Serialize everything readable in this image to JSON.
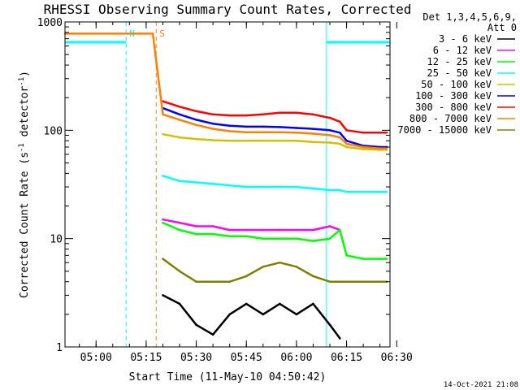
{
  "chart_data": {
    "type": "line",
    "title": "RHESSI Observing Summary Count Rates, Corrected",
    "xlabel": "Start Time (11-May-10 04:50:42)",
    "ylabel": "Corrected Count Rate (s",
    "ylabel_sup1": "-1",
    "ylabel_mid": " detector",
    "ylabel_sup2": "-1",
    "ylabel_end": ")",
    "yscale": "log",
    "xlim": [
      "04:50:42",
      "06:28:00"
    ],
    "ylim": [
      1,
      1000
    ],
    "x_ticks": [
      "05:00",
      "05:15",
      "05:30",
      "05:45",
      "06:00",
      "06:15",
      "06:30"
    ],
    "y_ticks": [
      "1",
      "10",
      "100",
      "1000"
    ],
    "legend_header": [
      "Det 1,3,4,5,6,9,",
      "Att 0"
    ],
    "legend_placement": "right",
    "series": [
      {
        "name": "3 - 6 keV",
        "color": "#000000",
        "x": [
          "05:20",
          "05:25",
          "05:30",
          "05:35",
          "05:40",
          "05:45",
          "05:50",
          "05:55",
          "06:00",
          "06:05",
          "06:10",
          "06:13"
        ],
        "y": [
          3.0,
          2.5,
          1.6,
          1.3,
          2.0,
          2.5,
          2.0,
          2.5,
          2.0,
          2.5,
          1.6,
          1.2
        ]
      },
      {
        "name": "6 - 12 keV",
        "color": "#ff00ff",
        "x": [
          "05:20",
          "05:25",
          "05:30",
          "05:35",
          "05:40",
          "05:45",
          "05:50",
          "05:55",
          "06:00",
          "06:05",
          "06:10",
          "06:13"
        ],
        "y": [
          15,
          14,
          13,
          13,
          12,
          12,
          12,
          12,
          12,
          12,
          13,
          12
        ]
      },
      {
        "name": "12 - 25 keV",
        "color": "#00ff00",
        "x": [
          "05:20",
          "05:25",
          "05:30",
          "05:35",
          "05:40",
          "05:45",
          "05:50",
          "05:55",
          "06:00",
          "06:05",
          "06:10",
          "06:13",
          "06:15",
          "06:20",
          "06:25",
          "06:27"
        ],
        "y": [
          14,
          12,
          11,
          11,
          10.5,
          10.5,
          10,
          10,
          10,
          9.5,
          10,
          12,
          7,
          6.5,
          6.5,
          6.5
        ]
      },
      {
        "name": "25 - 50 keV",
        "color": "#00ffff",
        "x": [
          "05:20",
          "05:25",
          "05:30",
          "05:35",
          "05:40",
          "05:45",
          "05:50",
          "05:55",
          "06:00",
          "06:05",
          "06:10",
          "06:13",
          "06:15",
          "06:20",
          "06:25",
          "06:27"
        ],
        "y": [
          38,
          34,
          33,
          32,
          31,
          30,
          30,
          30,
          30,
          29,
          28,
          28,
          27,
          27,
          27,
          27
        ]
      },
      {
        "name": "50 - 100 keV",
        "color": "#d4c000",
        "x": [
          "05:20",
          "05:25",
          "05:30",
          "05:35",
          "05:40",
          "05:45",
          "05:50",
          "05:55",
          "06:00",
          "06:05",
          "06:10",
          "06:13",
          "06:15",
          "06:20",
          "06:25",
          "06:27"
        ],
        "y": [
          92,
          86,
          83,
          81,
          80,
          80,
          80,
          80,
          80,
          78,
          77,
          75,
          70,
          67,
          66,
          66
        ]
      },
      {
        "name": "100 - 300 keV",
        "color": "#0000ff",
        "x": [
          "05:20",
          "05:25",
          "05:30",
          "05:35",
          "05:40",
          "05:45",
          "05:50",
          "05:55",
          "06:00",
          "06:05",
          "06:10",
          "06:13",
          "06:15",
          "06:20",
          "06:25",
          "06:27"
        ],
        "y": [
          160,
          140,
          125,
          115,
          110,
          108,
          108,
          107,
          105,
          103,
          100,
          95,
          80,
          72,
          70,
          70
        ]
      },
      {
        "name": "300 - 800 keV",
        "color": "#ff0000",
        "x": [
          "05:20",
          "05:25",
          "05:30",
          "05:35",
          "05:40",
          "05:45",
          "05:50",
          "05:55",
          "06:00",
          "06:05",
          "06:10",
          "06:13",
          "06:15",
          "06:20",
          "06:25",
          "06:27"
        ],
        "y": [
          185,
          165,
          150,
          140,
          137,
          137,
          140,
          145,
          145,
          140,
          130,
          120,
          100,
          95,
          95,
          95
        ]
      },
      {
        "name": "800 - 7000 keV",
        "color": "#ff8000",
        "x": [
          "04:50:42",
          "05:17",
          "05:20",
          "05:25",
          "05:30",
          "05:35",
          "05:40",
          "05:45",
          "05:50",
          "05:55",
          "06:00",
          "06:05",
          "06:10",
          "06:13",
          "06:15",
          "06:20",
          "06:25",
          "06:27"
        ],
        "y": [
          780,
          780,
          140,
          125,
          112,
          103,
          98,
          96,
          96,
          96,
          95,
          93,
          90,
          86,
          75,
          70,
          68,
          68
        ]
      },
      {
        "name": "7000 - 15000 keV",
        "color": "#808000",
        "x": [
          "05:20",
          "05:25",
          "05:30",
          "05:35",
          "05:40",
          "05:45",
          "05:50",
          "05:55",
          "06:00",
          "06:05",
          "06:10",
          "06:13",
          "06:15",
          "06:20",
          "06:25",
          "06:27"
        ],
        "y": [
          6.5,
          5.0,
          4.0,
          4.0,
          4.0,
          4.5,
          5.5,
          6.0,
          5.5,
          4.5,
          4.0,
          4.0,
          4.0,
          4.0,
          4.0,
          4.0
        ]
      }
    ],
    "annotations": [
      {
        "text": "N",
        "color": "#00ffff",
        "x": "05:09"
      },
      {
        "text": "S",
        "color": "#ff8000",
        "x": "05:18"
      }
    ],
    "markers": [
      {
        "kind": "night_bar",
        "color": "#00ffff",
        "x_start": "04:50:42",
        "x_end": "05:09",
        "y": 650
      },
      {
        "kind": "night_bar",
        "color": "#00ffff",
        "x_start": "06:09",
        "x_end": "06:28",
        "y": 650
      },
      {
        "kind": "night_line",
        "color": "#00ffff",
        "style": "solid",
        "x": "04:50:42"
      },
      {
        "kind": "night_line",
        "color": "#00ffff",
        "style": "dashed",
        "x": "05:09"
      },
      {
        "kind": "night_line",
        "color": "#00ffff",
        "style": "solid",
        "x": "06:09"
      },
      {
        "kind": "night_line",
        "color": "#00ffff",
        "style": "dashed",
        "x": "06:28"
      },
      {
        "kind": "saa_line",
        "color": "#ff8000",
        "style": "dashed",
        "x": "05:18"
      }
    ],
    "grid": false
  },
  "footer": {
    "timestamp": "14-Oct-2021 21:08"
  }
}
